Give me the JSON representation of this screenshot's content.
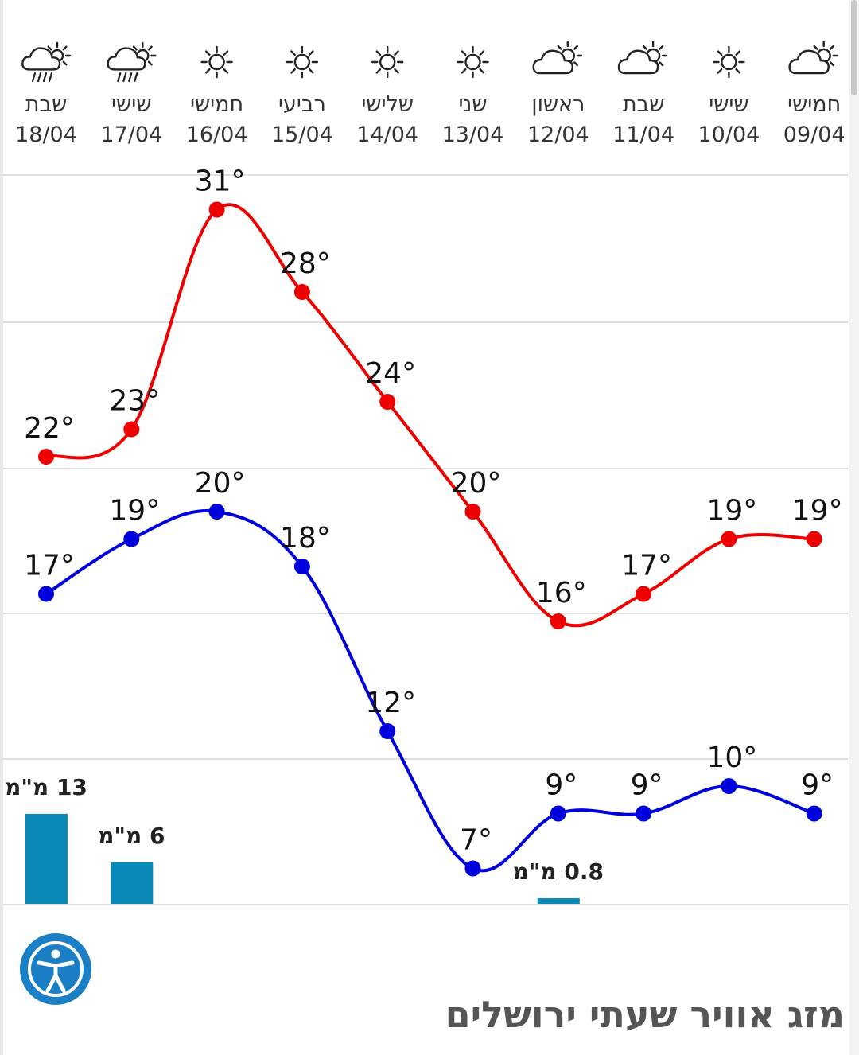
{
  "page": {
    "title": "מזג אוויר שעתי ירושלים"
  },
  "accessibility": {
    "icon": "accessibility-icon",
    "color": "#1a7fc4"
  },
  "colors": {
    "max": "#ee0000",
    "min": "#0000dd",
    "rain": "#0a8ab8",
    "grid": "#e0e0e0"
  },
  "chart_data": {
    "type": "line",
    "grid": true,
    "days": [
      {
        "name": "שבת",
        "date": "18/04",
        "icon": "rain-cloud-sun-icon"
      },
      {
        "name": "שישי",
        "date": "17/04",
        "icon": "rain-cloud-sun-icon"
      },
      {
        "name": "חמישי",
        "date": "16/04",
        "icon": "sun-icon"
      },
      {
        "name": "רביעי",
        "date": "15/04",
        "icon": "sun-icon"
      },
      {
        "name": "שלישי",
        "date": "14/04",
        "icon": "sun-icon"
      },
      {
        "name": "שני",
        "date": "13/04",
        "icon": "sun-icon"
      },
      {
        "name": "ראשון",
        "date": "12/04",
        "icon": "partly-cloudy-icon"
      },
      {
        "name": "שבת",
        "date": "11/04",
        "icon": "partly-cloudy-icon"
      },
      {
        "name": "שישי",
        "date": "10/04",
        "icon": "sun-icon"
      },
      {
        "name": "חמישי",
        "date": "09/04",
        "icon": "partly-cloudy-icon"
      }
    ],
    "series": [
      {
        "name": "max",
        "values": [
          22,
          23,
          31,
          28,
          24,
          20,
          16,
          17,
          19,
          19
        ],
        "color": "#ee0000"
      },
      {
        "name": "min",
        "values": [
          17,
          19,
          20,
          18,
          12,
          7,
          9,
          9,
          10,
          9
        ],
        "color": "#0000dd"
      }
    ],
    "rain": [
      {
        "day_index": 0,
        "value": 13,
        "label": "13 מ\"מ"
      },
      {
        "day_index": 1,
        "value": 6,
        "label": "6 מ\"מ"
      },
      {
        "day_index": 6,
        "value": 0.8,
        "label": "0.8 מ\"מ"
      }
    ]
  }
}
